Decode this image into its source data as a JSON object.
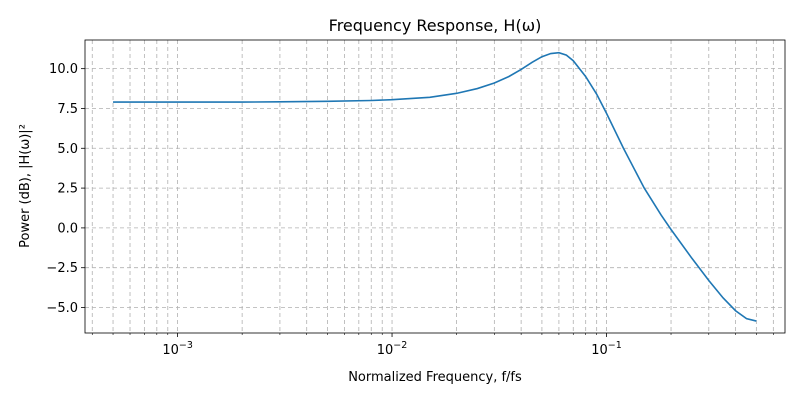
{
  "chart_data": {
    "type": "line",
    "title": "Frequency Response, H(ω)",
    "xlabel": "Normalized Frequency, f/fs",
    "ylabel": "Power (dB), |H(ω)|²",
    "x_scale": "log",
    "xlim": [
      0.00037,
      0.68
    ],
    "ylim": [
      -6.6,
      11.8
    ],
    "grid": true,
    "line_color": "#1f77b4",
    "grid_color": "#b0b0b0",
    "x_ticks": [
      {
        "value": 0.001,
        "base": "10",
        "exp": "−3"
      },
      {
        "value": 0.01,
        "base": "10",
        "exp": "−2"
      },
      {
        "value": 0.1,
        "base": "10",
        "exp": "−1"
      }
    ],
    "y_ticks": [
      {
        "value": 10.0,
        "label": "10.0"
      },
      {
        "value": 7.5,
        "label": "7.5"
      },
      {
        "value": 5.0,
        "label": "5.0"
      },
      {
        "value": 2.5,
        "label": "2.5"
      },
      {
        "value": 0.0,
        "label": "0.0"
      },
      {
        "value": -2.5,
        "label": "−2.5"
      },
      {
        "value": -5.0,
        "label": "−5.0"
      }
    ],
    "series": [
      {
        "x": [
          0.0005,
          0.001,
          0.002,
          0.003,
          0.005,
          0.008,
          0.01,
          0.015,
          0.02,
          0.025,
          0.03,
          0.035,
          0.04,
          0.045,
          0.05,
          0.055,
          0.06,
          0.065,
          0.07,
          0.08,
          0.09,
          0.1,
          0.12,
          0.15,
          0.18,
          0.2,
          0.25,
          0.3,
          0.35,
          0.4,
          0.45,
          0.5
        ],
        "y": [
          7.9,
          7.9,
          7.9,
          7.92,
          7.95,
          8.0,
          8.05,
          8.2,
          8.45,
          8.75,
          9.1,
          9.5,
          9.95,
          10.4,
          10.75,
          10.95,
          11.0,
          10.85,
          10.5,
          9.5,
          8.4,
          7.2,
          5.0,
          2.5,
          0.8,
          -0.1,
          -1.9,
          -3.3,
          -4.4,
          -5.2,
          -5.7,
          -5.85
        ]
      }
    ]
  }
}
